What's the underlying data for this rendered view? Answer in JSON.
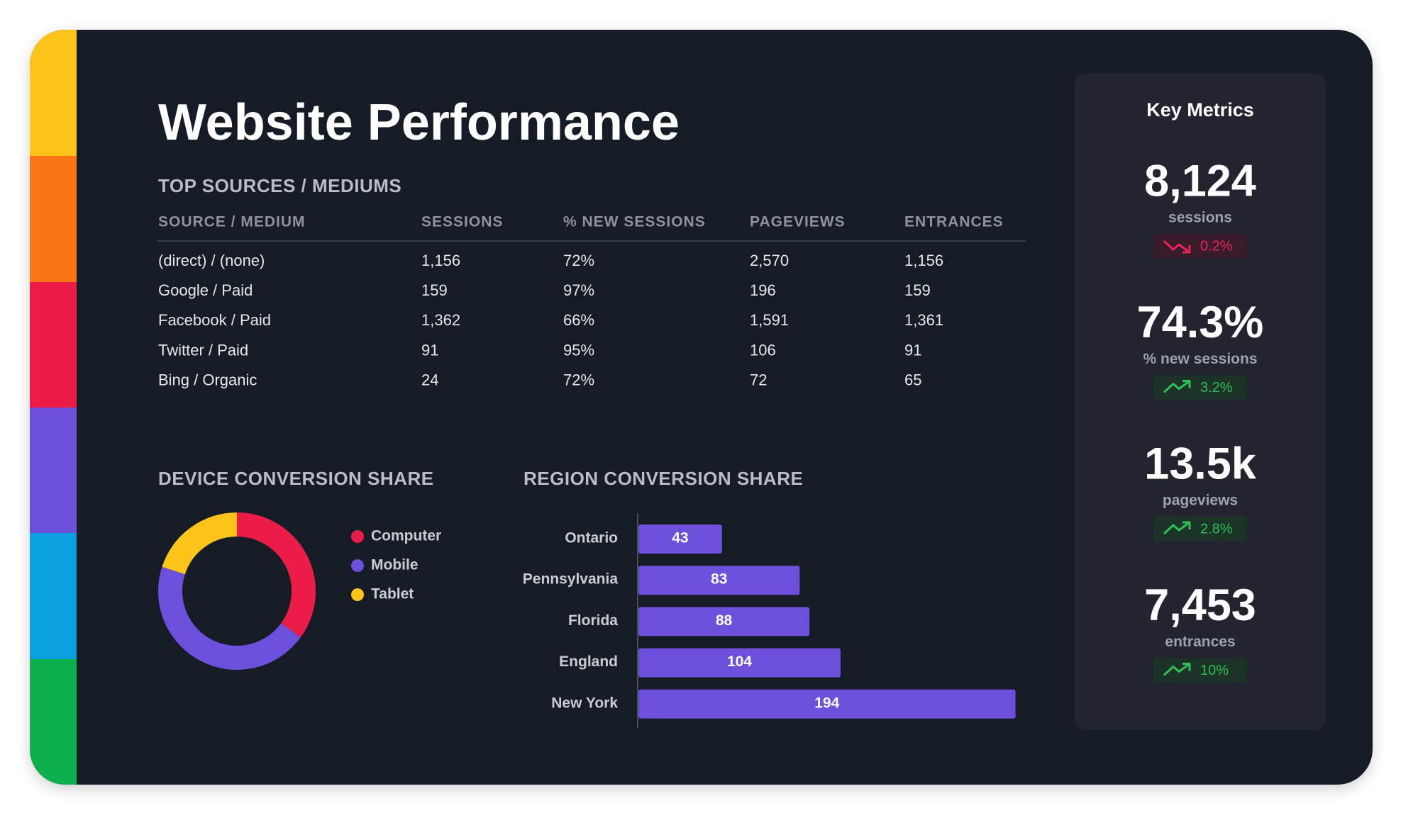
{
  "title": "Website Performance",
  "table": {
    "title": "TOP SOURCES / MEDIUMS",
    "headers": [
      "SOURCE / MEDIUM",
      "SESSIONS",
      "% NEW SESSIONS",
      "PAGEVIEWS",
      "ENTRANCES"
    ],
    "rows": [
      [
        "(direct) / (none)",
        "1,156",
        "72%",
        "2,570",
        "1,156"
      ],
      [
        "Google / Paid",
        "159",
        "97%",
        "196",
        "159"
      ],
      [
        "Facebook / Paid",
        "1,362",
        "66%",
        "1,591",
        "1,361"
      ],
      [
        "Twitter / Paid",
        "91",
        "95%",
        "106",
        "91"
      ],
      [
        "Bing / Organic",
        "24",
        "72%",
        "72",
        "65"
      ]
    ]
  },
  "chart_data": [
    {
      "type": "donut",
      "title": "DEVICE CONVERSION SHARE",
      "categories": [
        "Computer",
        "Mobile",
        "Tablet"
      ],
      "values": [
        35,
        45,
        20
      ],
      "colors": [
        "#ec1c48",
        "#6c4fdb",
        "#fcc418"
      ]
    },
    {
      "type": "bar",
      "orientation": "horizontal",
      "title": "REGION CONVERSION SHARE",
      "categories": [
        "Ontario",
        "Pennsylvania",
        "Florida",
        "England",
        "New York"
      ],
      "values": [
        43,
        83,
        88,
        104,
        194
      ],
      "color": "#6c4fdb",
      "xlim": [
        0,
        200
      ]
    }
  ],
  "key_metrics": {
    "title": "Key Metrics",
    "items": [
      {
        "value": "8,124",
        "label": "sessions",
        "change": "0.2%",
        "trend": "down"
      },
      {
        "value": "74.3%",
        "label": "% new sessions",
        "change": "3.2%",
        "trend": "up"
      },
      {
        "value": "13.5k",
        "label": "pageviews",
        "change": "2.8%",
        "trend": "up"
      },
      {
        "value": "7,453",
        "label": "entrances",
        "change": "10%",
        "trend": "up"
      }
    ]
  }
}
